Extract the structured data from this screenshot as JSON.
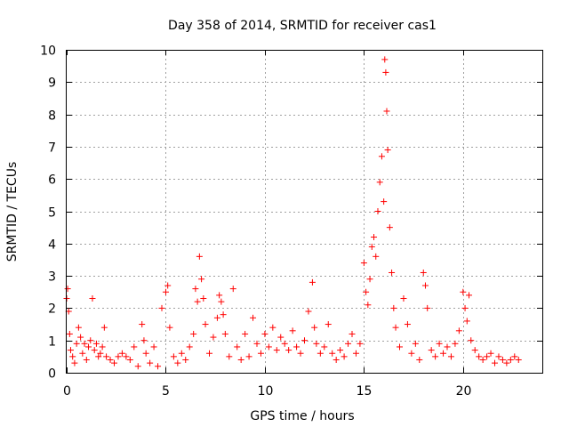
{
  "chart_data": {
    "type": "scatter",
    "title": "Day 358 of 2014, SRMTID for receiver cas1",
    "xlabel": "GPS time / hours",
    "ylabel": "SRMTID / TECUs",
    "xlim": [
      0,
      24
    ],
    "ylim": [
      0,
      10
    ],
    "x_ticks": [
      0,
      5,
      10,
      15,
      20
    ],
    "y_ticks": [
      0,
      1,
      2,
      3,
      4,
      5,
      6,
      7,
      8,
      9,
      10
    ],
    "grid": true,
    "marker": "plus",
    "color": "#ff0000",
    "series": [
      {
        "name": "cas1",
        "x": [
          0.0,
          0.05,
          0.1,
          0.15,
          0.2,
          0.3,
          0.4,
          0.5,
          0.6,
          0.7,
          0.8,
          0.9,
          1.0,
          1.1,
          1.2,
          1.3,
          1.4,
          1.5,
          1.6,
          1.7,
          1.8,
          1.9,
          2.0,
          2.2,
          2.4,
          2.6,
          2.8,
          3.0,
          3.2,
          3.4,
          3.6,
          3.8,
          3.9,
          4.0,
          4.2,
          4.4,
          4.6,
          4.8,
          5.0,
          5.1,
          5.2,
          5.4,
          5.6,
          5.8,
          6.0,
          6.2,
          6.4,
          6.5,
          6.6,
          6.7,
          6.8,
          6.9,
          7.0,
          7.2,
          7.4,
          7.6,
          7.7,
          7.8,
          7.9,
          8.0,
          8.2,
          8.4,
          8.6,
          8.8,
          9.0,
          9.2,
          9.4,
          9.6,
          9.8,
          10.0,
          10.2,
          10.4,
          10.6,
          10.8,
          11.0,
          11.2,
          11.4,
          11.6,
          11.8,
          12.0,
          12.2,
          12.4,
          12.5,
          12.6,
          12.8,
          13.0,
          13.2,
          13.4,
          13.6,
          13.8,
          14.0,
          14.2,
          14.4,
          14.6,
          14.8,
          15.0,
          15.1,
          15.2,
          15.3,
          15.4,
          15.5,
          15.6,
          15.7,
          15.8,
          15.9,
          16.0,
          16.05,
          16.1,
          16.15,
          16.2,
          16.3,
          16.4,
          16.5,
          16.6,
          16.8,
          17.0,
          17.2,
          17.4,
          17.6,
          17.8,
          18.0,
          18.1,
          18.2,
          18.4,
          18.6,
          18.8,
          19.0,
          19.2,
          19.4,
          19.6,
          19.8,
          20.0,
          20.1,
          20.2,
          20.3,
          20.4,
          20.6,
          20.8,
          21.0,
          21.2,
          21.4,
          21.6,
          21.8,
          22.0,
          22.2,
          22.4,
          22.6,
          22.8
        ],
        "y": [
          2.3,
          2.6,
          1.9,
          1.2,
          0.7,
          0.5,
          0.3,
          0.9,
          1.4,
          1.1,
          0.6,
          0.9,
          0.4,
          0.8,
          1.0,
          2.3,
          0.7,
          0.9,
          0.5,
          0.6,
          0.8,
          1.4,
          0.5,
          0.4,
          0.3,
          0.5,
          0.6,
          0.5,
          0.4,
          0.8,
          0.2,
          1.5,
          1.0,
          0.6,
          0.3,
          0.8,
          0.2,
          2.0,
          2.5,
          2.7,
          1.4,
          0.5,
          0.3,
          0.6,
          0.4,
          0.8,
          1.2,
          2.6,
          2.2,
          3.6,
          2.9,
          2.3,
          1.5,
          0.6,
          1.1,
          1.7,
          2.4,
          2.2,
          1.8,
          1.2,
          0.5,
          2.6,
          0.8,
          0.4,
          1.2,
          0.5,
          1.7,
          0.9,
          0.6,
          1.2,
          0.8,
          1.4,
          0.7,
          1.1,
          0.9,
          0.7,
          1.3,
          0.8,
          0.6,
          1.0,
          1.9,
          2.8,
          1.4,
          0.9,
          0.6,
          0.8,
          1.5,
          0.6,
          0.4,
          0.7,
          0.5,
          0.9,
          1.2,
          0.6,
          0.9,
          3.4,
          2.5,
          2.1,
          2.9,
          3.9,
          4.2,
          3.6,
          5.0,
          5.9,
          6.7,
          5.3,
          9.7,
          9.3,
          8.1,
          6.9,
          4.5,
          3.1,
          2.0,
          1.4,
          0.8,
          2.3,
          1.5,
          0.6,
          0.9,
          0.4,
          3.1,
          2.7,
          2.0,
          0.7,
          0.5,
          0.9,
          0.6,
          0.8,
          0.5,
          0.9,
          1.3,
          2.5,
          2.0,
          1.6,
          2.4,
          1.0,
          0.7,
          0.5,
          0.4,
          0.5,
          0.6,
          0.3,
          0.5,
          0.4,
          0.3,
          0.4,
          0.5,
          0.4
        ]
      }
    ]
  }
}
